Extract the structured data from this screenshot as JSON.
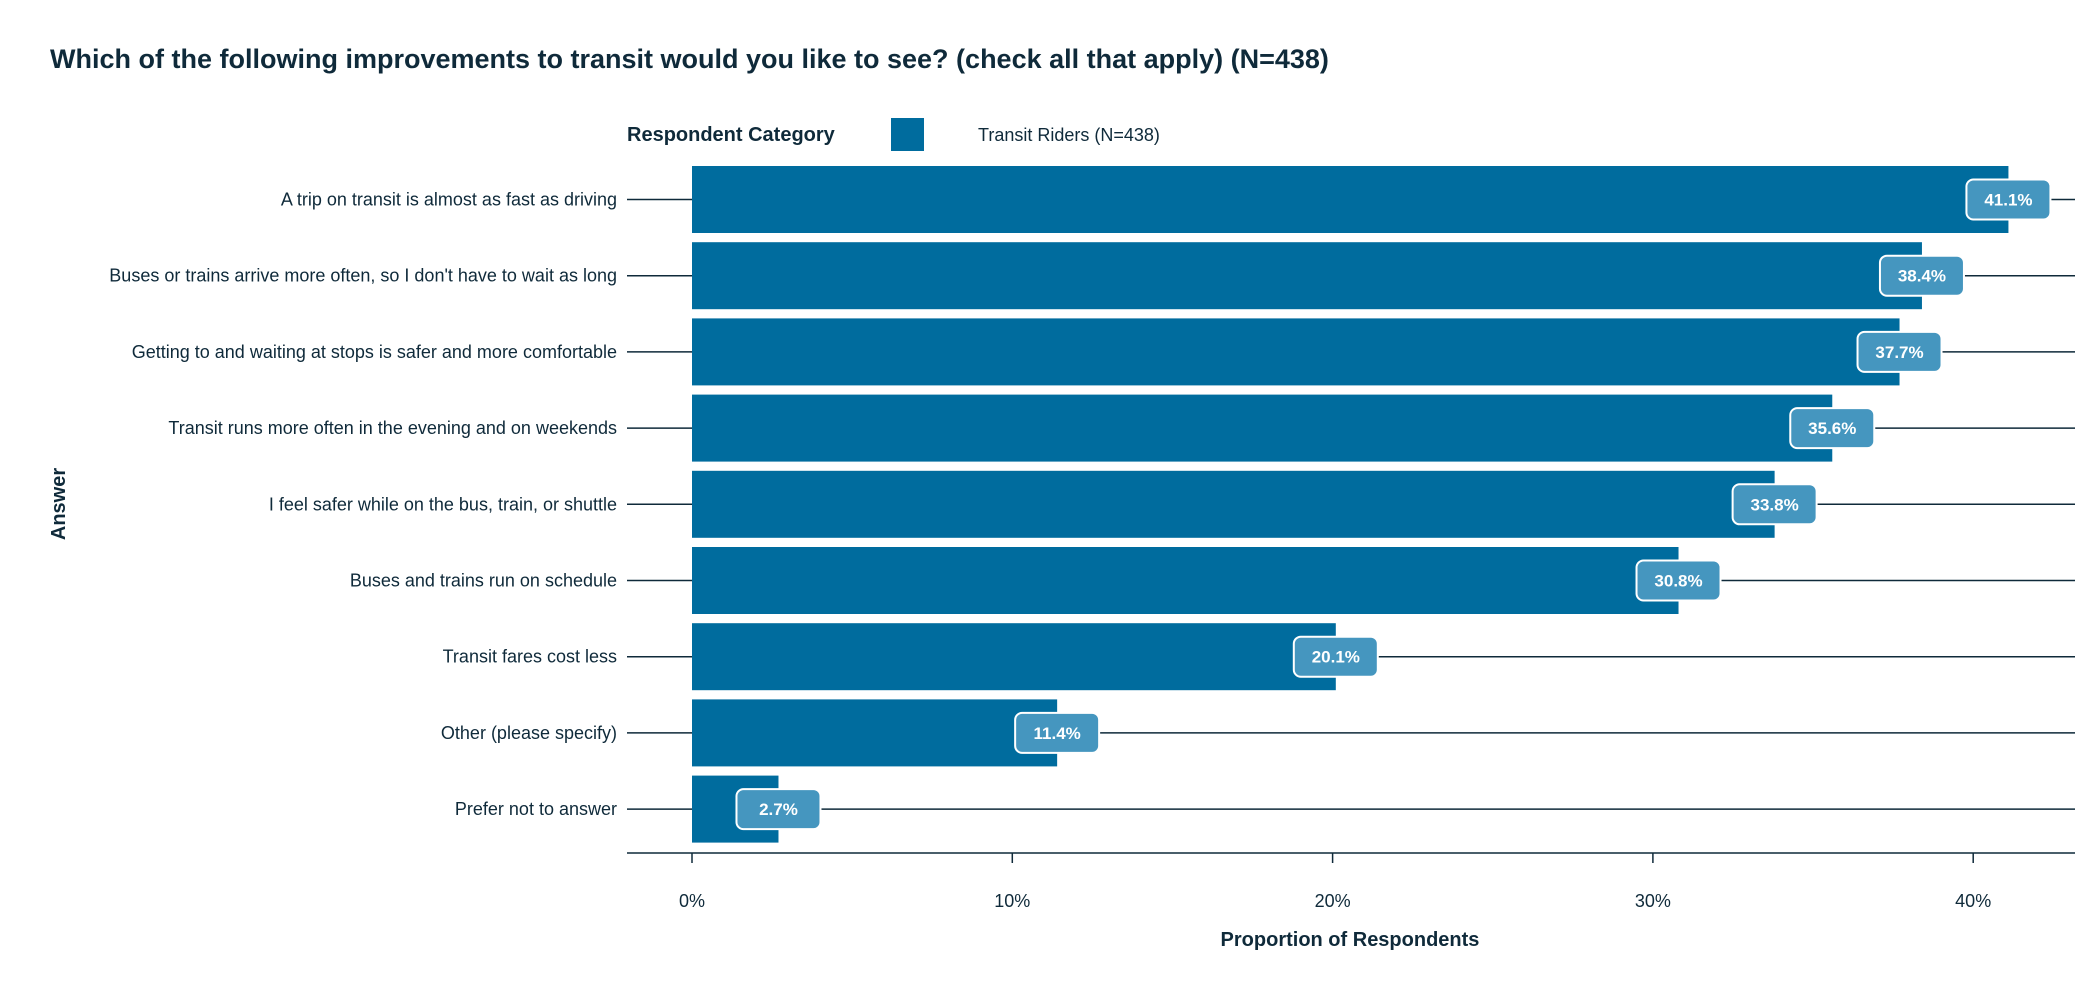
{
  "chart_data": {
    "type": "bar",
    "orientation": "horizontal",
    "title": "Which of the following improvements to transit would you like to see? (check all that apply) (N=438)",
    "xlabel": "Proportion of Respondents",
    "ylabel": "Answer",
    "xlim": [
      0,
      0.43
    ],
    "x_ticks": [
      0,
      0.1,
      0.2,
      0.3,
      0.4
    ],
    "x_tick_labels": [
      "0%",
      "10%",
      "20%",
      "30%",
      "40%"
    ],
    "grid": false,
    "legend": {
      "title": "Respondent Category",
      "position": "top",
      "entries": [
        {
          "label": "Transit Riders (N=438)",
          "color": "#006c9e"
        }
      ]
    },
    "categories": [
      "A trip on transit is almost as fast as driving",
      "Buses or trains arrive more often, so I don't have to wait as long",
      "Getting to and waiting at stops is safer and more comfortable",
      "Transit runs more often in the evening and on weekends",
      "I feel safer while on the bus, train, or shuttle",
      "Buses and trains run on schedule",
      "Transit fares cost less",
      "Other (please specify)",
      "Prefer not to answer"
    ],
    "values": [
      0.411,
      0.384,
      0.377,
      0.356,
      0.338,
      0.308,
      0.201,
      0.114,
      0.027
    ],
    "data_labels": [
      "41.1%",
      "38.4%",
      "37.7%",
      "35.6%",
      "33.8%",
      "30.8%",
      "20.1%",
      "11.4%",
      "2.7%"
    ],
    "colors": {
      "bar": "#006c9e",
      "label_box": "#4596bf",
      "line": "#0f2a3a"
    }
  }
}
